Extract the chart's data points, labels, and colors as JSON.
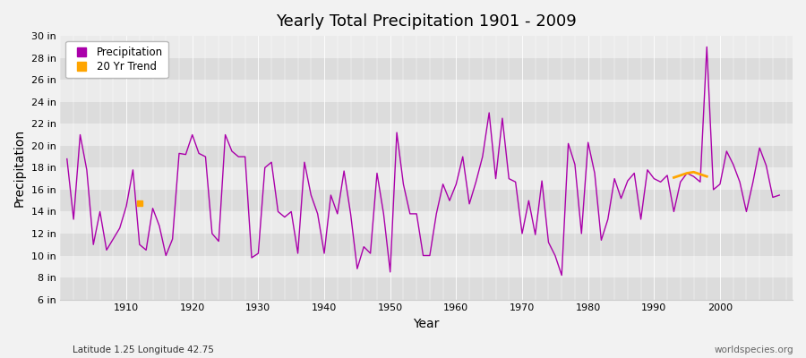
{
  "title": "Yearly Total Precipitation 1901 - 2009",
  "xlabel": "Year",
  "ylabel": "Precipitation",
  "subtitle": "Latitude 1.25 Longitude 42.75",
  "credit": "worldspecies.org",
  "ylim": [
    6,
    30
  ],
  "yticks": [
    6,
    8,
    10,
    12,
    14,
    16,
    18,
    20,
    22,
    24,
    26,
    28,
    30
  ],
  "ytick_labels": [
    "6 in",
    "8 in",
    "10 in",
    "12 in",
    "14 in",
    "16 in",
    "18 in",
    "20 in",
    "22 in",
    "24 in",
    "26 in",
    "28 in",
    "30 in"
  ],
  "precip_color": "#aa00aa",
  "trend_color": "#FFA500",
  "bg_color": "#f2f2f2",
  "band_light": "#ebebeb",
  "band_dark": "#dcdcdc",
  "years": [
    1901,
    1902,
    1903,
    1904,
    1905,
    1906,
    1907,
    1908,
    1909,
    1910,
    1911,
    1912,
    1913,
    1914,
    1915,
    1916,
    1917,
    1918,
    1919,
    1920,
    1921,
    1922,
    1923,
    1924,
    1925,
    1926,
    1927,
    1928,
    1929,
    1930,
    1931,
    1932,
    1933,
    1934,
    1935,
    1936,
    1937,
    1938,
    1939,
    1940,
    1941,
    1942,
    1943,
    1944,
    1945,
    1946,
    1947,
    1948,
    1949,
    1950,
    1951,
    1952,
    1953,
    1954,
    1955,
    1956,
    1957,
    1958,
    1959,
    1960,
    1961,
    1962,
    1963,
    1964,
    1965,
    1966,
    1967,
    1968,
    1969,
    1970,
    1971,
    1972,
    1973,
    1974,
    1975,
    1976,
    1977,
    1978,
    1979,
    1980,
    1981,
    1982,
    1983,
    1984,
    1985,
    1986,
    1987,
    1988,
    1989,
    1990,
    1991,
    1992,
    1993,
    1994,
    1995,
    1996,
    1997,
    1998,
    1999,
    2000,
    2001,
    2002,
    2003,
    2004,
    2005,
    2006,
    2007,
    2008,
    2009
  ],
  "precip": [
    18.8,
    13.3,
    21.0,
    17.8,
    11.0,
    14.0,
    10.5,
    11.5,
    12.5,
    14.5,
    17.8,
    11.0,
    10.5,
    14.3,
    12.7,
    10.0,
    11.5,
    19.3,
    19.2,
    21.0,
    19.3,
    19.0,
    12.0,
    11.3,
    21.0,
    19.5,
    19.0,
    19.0,
    9.8,
    10.2,
    18.0,
    18.5,
    14.0,
    13.5,
    14.0,
    10.2,
    18.5,
    15.5,
    13.8,
    10.2,
    15.5,
    13.8,
    17.7,
    13.8,
    8.8,
    10.8,
    10.2,
    17.5,
    13.8,
    8.5,
    21.2,
    16.5,
    13.8,
    13.8,
    10.0,
    10.0,
    13.8,
    16.5,
    15.0,
    16.5,
    19.0,
    14.7,
    16.7,
    19.0,
    23.0,
    17.0,
    22.5,
    17.0,
    16.7,
    12.0,
    15.0,
    11.9,
    16.8,
    11.2,
    10.0,
    8.2,
    20.2,
    18.3,
    12.0,
    20.3,
    17.5,
    11.4,
    13.3,
    17.0,
    15.2,
    16.8,
    17.5,
    13.3,
    17.8,
    17.0,
    16.7,
    17.3,
    14.0,
    16.7,
    17.5,
    17.2,
    16.7,
    29.0,
    16.0,
    16.5,
    19.5,
    18.3,
    16.7,
    14.0,
    16.7,
    19.8,
    18.2,
    15.3,
    15.5
  ],
  "trend_x": [
    1993,
    1994,
    1995,
    1996,
    1997,
    1998
  ],
  "trend_y": [
    17.1,
    17.3,
    17.5,
    17.6,
    17.4,
    17.2
  ],
  "trend_dot_x": 1912,
  "trend_dot_y": 14.8,
  "xticks": [
    1910,
    1920,
    1930,
    1940,
    1950,
    1960,
    1970,
    1980,
    1990,
    2000
  ],
  "xlim": [
    1900,
    2011
  ]
}
